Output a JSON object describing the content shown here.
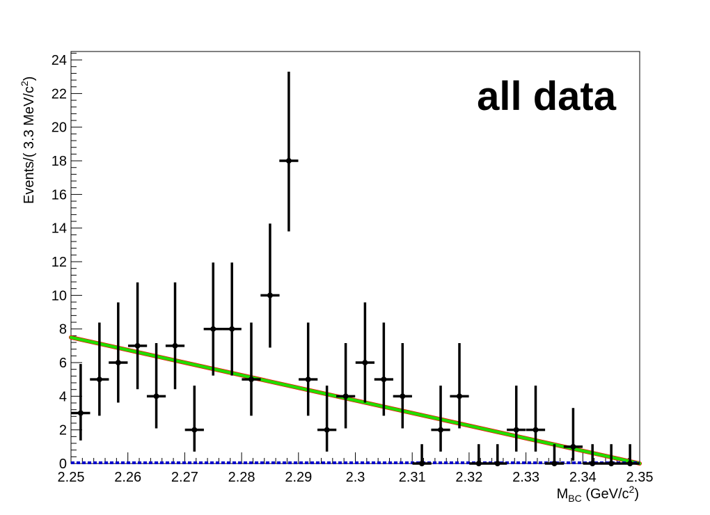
{
  "chart_data": {
    "type": "scatter",
    "annotation": "all data",
    "xlabel": {
      "main": "M",
      "sub": "BC",
      "rest": " (GeV/c",
      "sup": "2",
      "close": ")"
    },
    "ylabel": {
      "main": "Events/(  3.3 MeV/c",
      "sup": "2",
      "close": ")"
    },
    "xlim": [
      2.25,
      2.35
    ],
    "ylim": [
      0,
      24.5
    ],
    "xticks": [
      2.25,
      2.26,
      2.27,
      2.28,
      2.29,
      2.3,
      2.31,
      2.32,
      2.33,
      2.34,
      2.35
    ],
    "xtick_labels": [
      "2.25",
      "2.26",
      "2.27",
      "2.28",
      "2.29",
      "2.3",
      "2.31",
      "2.32",
      "2.33",
      "2.34",
      "2.35"
    ],
    "yticks": [
      0,
      2,
      4,
      6,
      8,
      10,
      12,
      14,
      16,
      18,
      20,
      22,
      24
    ],
    "ytick_labels": [
      "0",
      "2",
      "4",
      "6",
      "8",
      "10",
      "12",
      "14",
      "16",
      "18",
      "20",
      "22",
      "24"
    ],
    "bin_width": 0.00333,
    "series": [
      {
        "kind": "points",
        "color": "#000000",
        "x": [
          2.2517,
          2.255,
          2.2583,
          2.2617,
          2.265,
          2.2683,
          2.2717,
          2.275,
          2.2783,
          2.2817,
          2.285,
          2.2883,
          2.2917,
          2.295,
          2.2983,
          2.3017,
          2.305,
          2.3083,
          2.3117,
          2.315,
          2.3183,
          2.3217,
          2.325,
          2.3283,
          2.3317,
          2.335,
          2.3383,
          2.3417,
          2.345,
          2.3483
        ],
        "y": [
          3,
          5,
          6,
          7,
          4,
          7,
          2,
          8,
          8,
          5,
          10,
          18,
          5,
          2,
          4,
          6,
          5,
          4,
          0,
          2,
          4,
          0,
          0,
          2,
          2,
          0,
          1,
          0,
          0,
          0
        ],
        "err_low": [
          1.63,
          2.16,
          2.38,
          2.58,
          1.91,
          2.58,
          1.29,
          2.77,
          2.77,
          2.16,
          3.11,
          4.2,
          2.16,
          1.29,
          1.91,
          2.38,
          2.16,
          1.91,
          0,
          1.29,
          1.91,
          0,
          0,
          1.29,
          1.29,
          0,
          0.83,
          0,
          0,
          0
        ],
        "err_high": [
          2.92,
          3.38,
          3.58,
          3.77,
          3.16,
          3.77,
          2.63,
          3.95,
          3.95,
          3.38,
          4.27,
          5.3,
          3.38,
          2.63,
          3.16,
          3.58,
          3.38,
          3.16,
          1.15,
          2.63,
          3.16,
          1.15,
          1.15,
          2.63,
          2.63,
          1.15,
          2.3,
          1.15,
          1.15,
          1.15
        ]
      },
      {
        "kind": "line",
        "color": "#22dd00",
        "x": [
          2.25,
          2.35
        ],
        "y": [
          7.5,
          0
        ]
      },
      {
        "kind": "dashed-line",
        "color": "#0000cc",
        "x": [
          2.25,
          2.35
        ],
        "y": [
          0,
          0
        ]
      }
    ]
  }
}
